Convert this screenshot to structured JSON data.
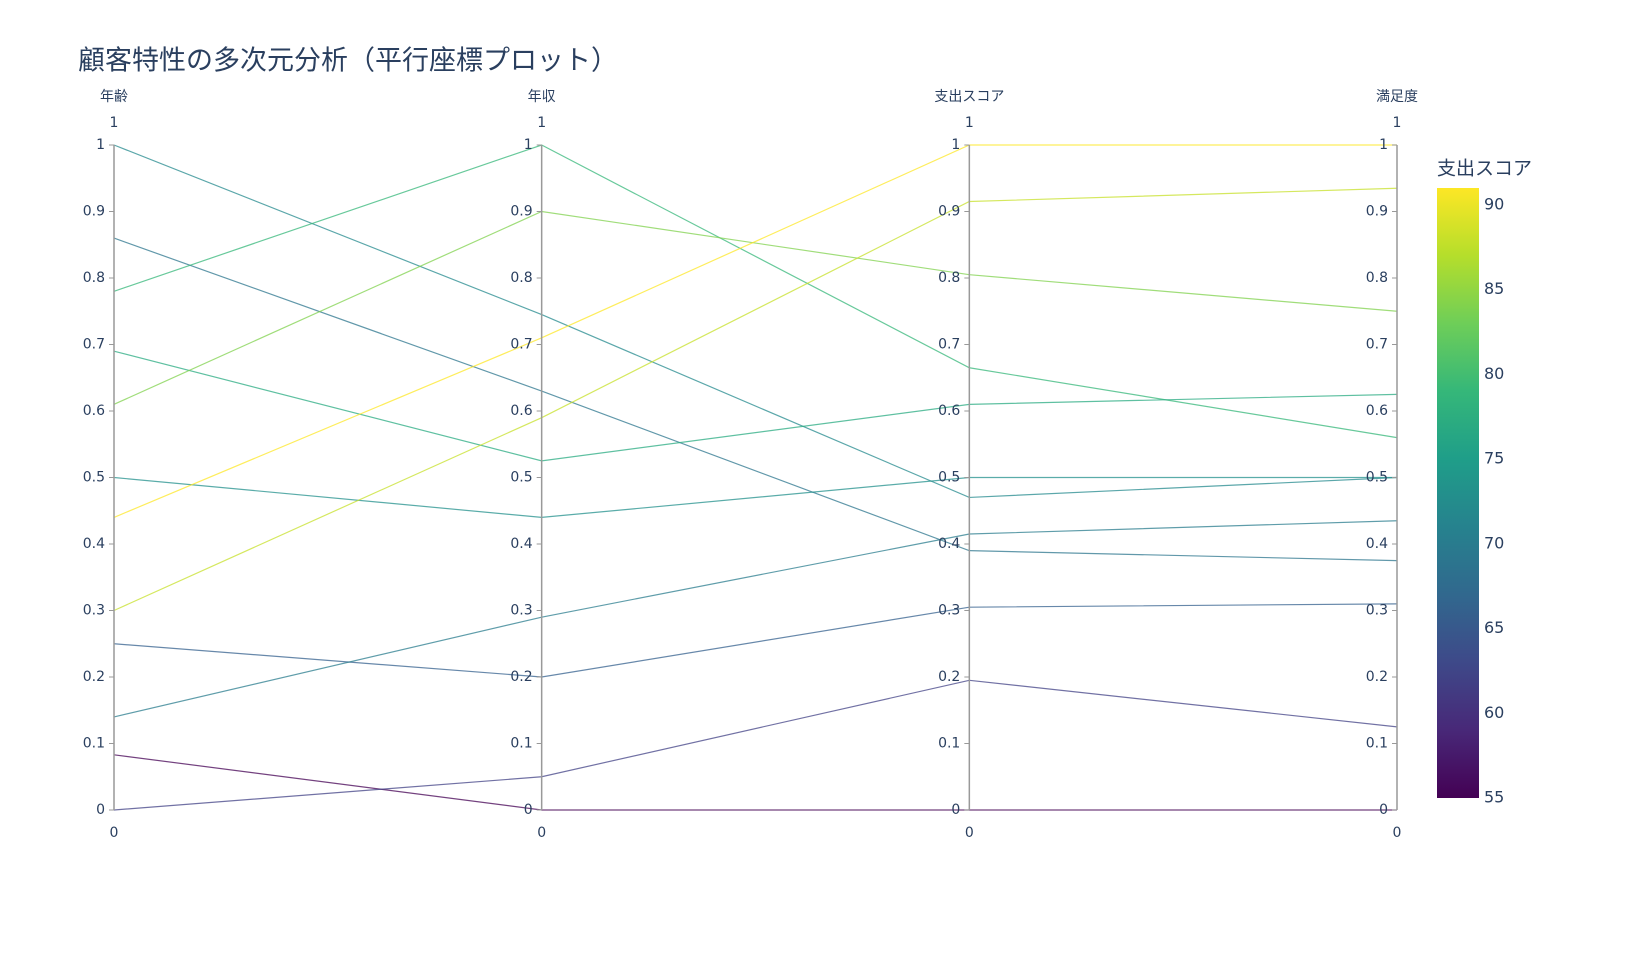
{
  "chart_data": {
    "type": "parcoords",
    "title": "顧客特性の多次元分析（平行座標プロット）",
    "dimensions": [
      {
        "label": "年齢",
        "range": [
          0,
          1
        ],
        "ticks": [
          0,
          0.1,
          0.2,
          0.3,
          0.4,
          0.5,
          0.6,
          0.7,
          0.8,
          0.9,
          1
        ]
      },
      {
        "label": "年収",
        "range": [
          0,
          1
        ],
        "ticks": [
          0,
          0.1,
          0.2,
          0.3,
          0.4,
          0.5,
          0.6,
          0.7,
          0.8,
          0.9,
          1
        ]
      },
      {
        "label": "支出スコア",
        "range": [
          0,
          1
        ],
        "ticks": [
          0,
          0.1,
          0.2,
          0.3,
          0.4,
          0.5,
          0.6,
          0.7,
          0.8,
          0.9,
          1
        ]
      },
      {
        "label": "満足度",
        "range": [
          0,
          1
        ],
        "ticks": [
          0,
          0.1,
          0.2,
          0.3,
          0.4,
          0.5,
          0.6,
          0.7,
          0.8,
          0.9,
          1
        ]
      }
    ],
    "lines": [
      {
        "values": [
          1.0,
          0.745,
          0.47,
          0.5
        ],
        "color": 72
      },
      {
        "values": [
          0.86,
          0.63,
          0.39,
          0.375
        ],
        "color": 69
      },
      {
        "values": [
          0.78,
          1.0,
          0.665,
          0.56
        ],
        "color": 79
      },
      {
        "values": [
          0.69,
          0.525,
          0.61,
          0.625
        ],
        "color": 77
      },
      {
        "values": [
          0.61,
          0.9,
          0.805,
          0.75
        ],
        "color": 84
      },
      {
        "values": [
          0.5,
          0.44,
          0.5,
          0.5
        ],
        "color": 73
      },
      {
        "values": [
          0.44,
          0.71,
          1.0,
          1.0
        ],
        "color": 91
      },
      {
        "values": [
          0.3,
          0.59,
          0.915,
          0.935
        ],
        "color": 88
      },
      {
        "values": [
          0.25,
          0.2,
          0.305,
          0.31
        ],
        "color": 66
      },
      {
        "values": [
          0.14,
          0.29,
          0.415,
          0.435
        ],
        "color": 70
      },
      {
        "values": [
          0.083,
          0,
          0,
          0
        ],
        "color": 55
      },
      {
        "values": [
          0,
          0.05,
          0.195,
          0.125
        ],
        "color": 62
      }
    ],
    "colorbar": {
      "title": "支出スコア",
      "range": [
        55,
        91
      ],
      "ticks": [
        55,
        60,
        65,
        70,
        75,
        80,
        85,
        90
      ],
      "colorscale": "viridis"
    }
  }
}
